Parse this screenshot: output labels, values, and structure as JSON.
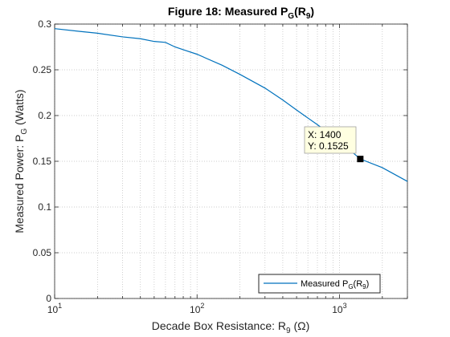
{
  "chart_data": {
    "type": "line",
    "title": {
      "main": "Figure 18: Measured P",
      "sub1": "G",
      "mid": "(R",
      "sub2": "9",
      "end": ")"
    },
    "xlabel": {
      "main": "Decade Box Resistance: R",
      "sub": "9",
      "end": " (Ω)"
    },
    "ylabel": {
      "main": "Measured Power: P",
      "sub": "G",
      "end": " (Watts)"
    },
    "x_scale": "log",
    "xlim": [
      10,
      3000
    ],
    "ylim": [
      0,
      0.3
    ],
    "grid": {
      "major": "dotted",
      "minor_x": "dotted"
    },
    "x_ticks": [
      {
        "base": "10",
        "exp": "1",
        "value": 10
      },
      {
        "base": "10",
        "exp": "2",
        "value": 100
      },
      {
        "base": "10",
        "exp": "3",
        "value": 1000
      }
    ],
    "y_ticks": [
      "0",
      "0.05",
      "0.1",
      "0.15",
      "0.2",
      "0.25",
      "0.3"
    ],
    "series": [
      {
        "legend": {
          "main": "Measured P",
          "sub": "G",
          "mid": "(R",
          "sub2": "9",
          "end": ")"
        },
        "color": "#0072bd",
        "x": [
          10,
          15,
          20,
          30,
          40,
          50,
          60,
          70,
          80,
          100,
          150,
          200,
          300,
          400,
          500,
          700,
          1000,
          1400,
          2000,
          3000
        ],
        "y": [
          0.295,
          0.292,
          0.29,
          0.286,
          0.284,
          0.281,
          0.28,
          0.275,
          0.272,
          0.267,
          0.255,
          0.245,
          0.23,
          0.217,
          0.206,
          0.19,
          0.172,
          0.1525,
          0.143,
          0.128
        ]
      }
    ],
    "datatip": {
      "x_label": "X: 1400",
      "y_label": "Y: 0.1525",
      "x": 1400,
      "y": 0.1525
    },
    "legend_position": "bottom-right"
  }
}
